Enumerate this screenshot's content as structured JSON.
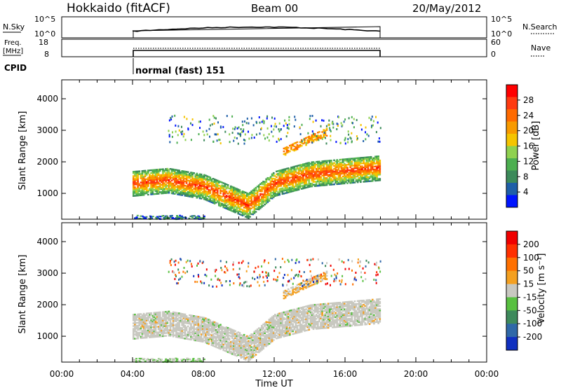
{
  "header": {
    "site": "Hokkaido (fitACF)",
    "beam": "Beam 00",
    "date": "20/May/2012"
  },
  "nsky_panel": {
    "left_label": "N.Sky",
    "right_label": "N.Search",
    "tick_top": "10^5",
    "tick_bottom": "10^0",
    "right_tick_top": "10^5",
    "right_tick_bottom": "10^0"
  },
  "freq_panel": {
    "left_label_1": "Freq.",
    "left_label_2": "[MHz]",
    "right_label": "Nave",
    "tick_top": "18",
    "tick_bottom": "8",
    "right_tick_top": "60",
    "right_tick_bottom": "0"
  },
  "cpid": {
    "label": "CPID",
    "mode_text": "normal (fast) 151"
  },
  "power_panel": {
    "ylabel": "Slant Range [km]",
    "yticks": [
      "4000",
      "3000",
      "2000",
      "1000"
    ],
    "colorbar_label": "Power [dB]",
    "colorbar_ticks": [
      "28",
      "24",
      "20",
      "16",
      "12",
      "8",
      "4"
    ],
    "colors": [
      "#0014ff",
      "#1f5fa8",
      "#3c8a5a",
      "#4caf50",
      "#8fd14f",
      "#f5c400",
      "#f89a00",
      "#ff6a00",
      "#ff3a10",
      "#ff0000"
    ]
  },
  "velocity_panel": {
    "ylabel": "Slant Range [km]",
    "yticks": [
      "4000",
      "3000",
      "2000",
      "1000"
    ],
    "colorbar_label": "Velocity [m s⁻¹]",
    "colorbar_ticks": [
      "200",
      "100",
      "50",
      "15",
      "-15",
      "-50",
      "-100",
      "-200"
    ],
    "colors": [
      "#1030c0",
      "#2f68a8",
      "#3e8a5c",
      "#58c040",
      "#c8c8c0",
      "#f4a020",
      "#ff7000",
      "#ff3000",
      "#f00000"
    ]
  },
  "xaxis": {
    "label": "Time UT",
    "ticks": [
      "00:00",
      "04:00",
      "08:00",
      "12:00",
      "16:00",
      "20:00",
      "00:00"
    ]
  },
  "chart_data": {
    "type": "heatmap",
    "title": "Hokkaido (fitACF) Beam 00 20/May/2012",
    "xlabel": "Time UT",
    "ylabel": "Slant Range [km]",
    "xlim_hours": [
      0,
      24
    ],
    "ylim_km": [
      180,
      4600
    ],
    "data_coverage_hours": [
      4,
      18
    ],
    "power_colorbar_db": [
      4,
      8,
      12,
      16,
      20,
      24,
      28
    ],
    "velocity_colorbar_ms": [
      -200,
      -100,
      -50,
      -15,
      15,
      50,
      100,
      200
    ],
    "main_echo_band": {
      "description": "strong echo band",
      "points": [
        {
          "t": 4.0,
          "range_km": 1300,
          "power_db": 26
        },
        {
          "t": 6.0,
          "range_km": 1400,
          "power_db": 28
        },
        {
          "t": 8.0,
          "range_km": 1200,
          "power_db": 28
        },
        {
          "t": 10.5,
          "range_km": 600,
          "power_db": 30
        },
        {
          "t": 12.0,
          "range_km": 1300,
          "power_db": 26
        },
        {
          "t": 14.0,
          "range_km": 1600,
          "power_db": 24
        },
        {
          "t": 16.0,
          "range_km": 1700,
          "power_db": 22
        },
        {
          "t": 18.0,
          "range_km": 1800,
          "power_db": 20
        }
      ]
    },
    "upper_echo_band": {
      "points": [
        {
          "t": 12.5,
          "range_km": 2300,
          "power_db": 22
        },
        {
          "t": 14.0,
          "range_km": 2700,
          "power_db": 20
        },
        {
          "t": 15.0,
          "range_km": 2950,
          "power_db": 18
        }
      ]
    }
  }
}
